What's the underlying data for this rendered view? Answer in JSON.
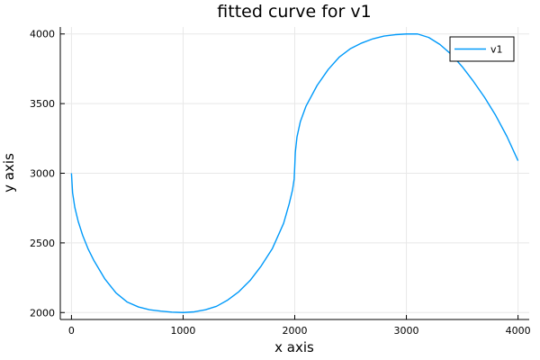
{
  "chart_data": {
    "type": "line",
    "title": "fitted curve for v1",
    "xlabel": "x axis",
    "ylabel": "y axis",
    "xlim": [
      -100,
      4100
    ],
    "ylim": [
      1950,
      4050
    ],
    "xticks": [
      0,
      1000,
      2000,
      3000,
      4000
    ],
    "yticks": [
      2000,
      2500,
      3000,
      3500,
      4000
    ],
    "grid": true,
    "legend_position": "top-right",
    "series": [
      {
        "name": "v1",
        "color": "#009AFA",
        "x": [
          0,
          10,
          30,
          60,
          100,
          150,
          200,
          300,
          400,
          500,
          600,
          700,
          800,
          900,
          1000,
          1100,
          1200,
          1300,
          1400,
          1500,
          1600,
          1700,
          1800,
          1900,
          1950,
          1980,
          1995,
          2000,
          2005,
          2020,
          2050,
          2100,
          2200,
          2300,
          2400,
          2500,
          2600,
          2700,
          2800,
          2900,
          3000,
          3100,
          3200,
          3300,
          3400,
          3500,
          3600,
          3700,
          3800,
          3900,
          4000
        ],
        "y": [
          3000,
          2860,
          2755,
          2655,
          2555,
          2455,
          2375,
          2240,
          2140,
          2075,
          2040,
          2020,
          2010,
          2003,
          2000,
          2005,
          2020,
          2045,
          2090,
          2150,
          2230,
          2335,
          2460,
          2640,
          2780,
          2880,
          2960,
          3050,
          3150,
          3260,
          3370,
          3480,
          3630,
          3745,
          3835,
          3895,
          3935,
          3965,
          3985,
          3995,
          4000,
          4000,
          3975,
          3925,
          3855,
          3765,
          3660,
          3545,
          3415,
          3265,
          3090
        ]
      }
    ]
  }
}
